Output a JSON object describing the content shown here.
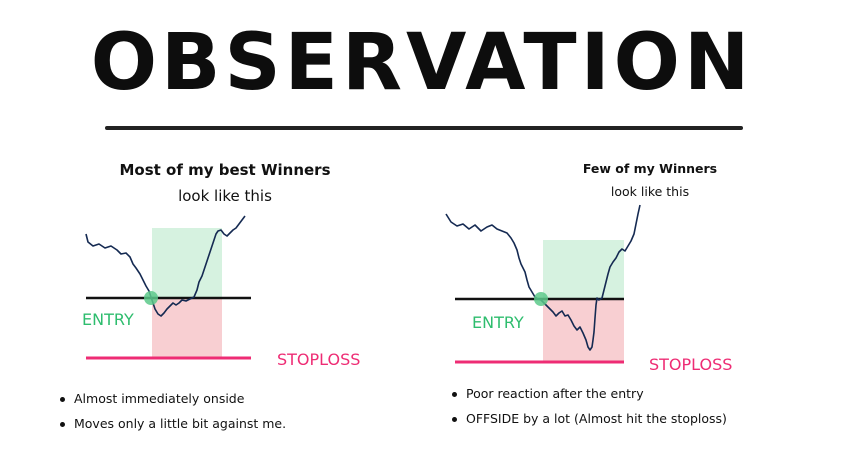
{
  "title": "OBSERVATION",
  "left_panel": {
    "caption_line1": "Most of my best Winners",
    "caption_line2": "look like this",
    "entry_label": "ENTRY",
    "stoploss_label": "STOPLOSS",
    "bullets": [
      "Almost immediately onside",
      "Moves only a little bit against me."
    ]
  },
  "right_panel": {
    "caption_line1": "Few of my Winners",
    "caption_line2": "look like this",
    "entry_label": "ENTRY",
    "stoploss_label": "STOPLOSS",
    "bullets": [
      "Poor reaction after the entry",
      "OFFSIDE by a lot (Almost hit the stoploss)"
    ]
  },
  "colors": {
    "profit_zone": "#d6f2e0",
    "loss_zone": "#f8cfd2",
    "entry_text": "#2ebd6e",
    "stoploss_line": "#ee2c74",
    "price_line": "#152a52",
    "entry_marker": "#5cc98a"
  }
}
